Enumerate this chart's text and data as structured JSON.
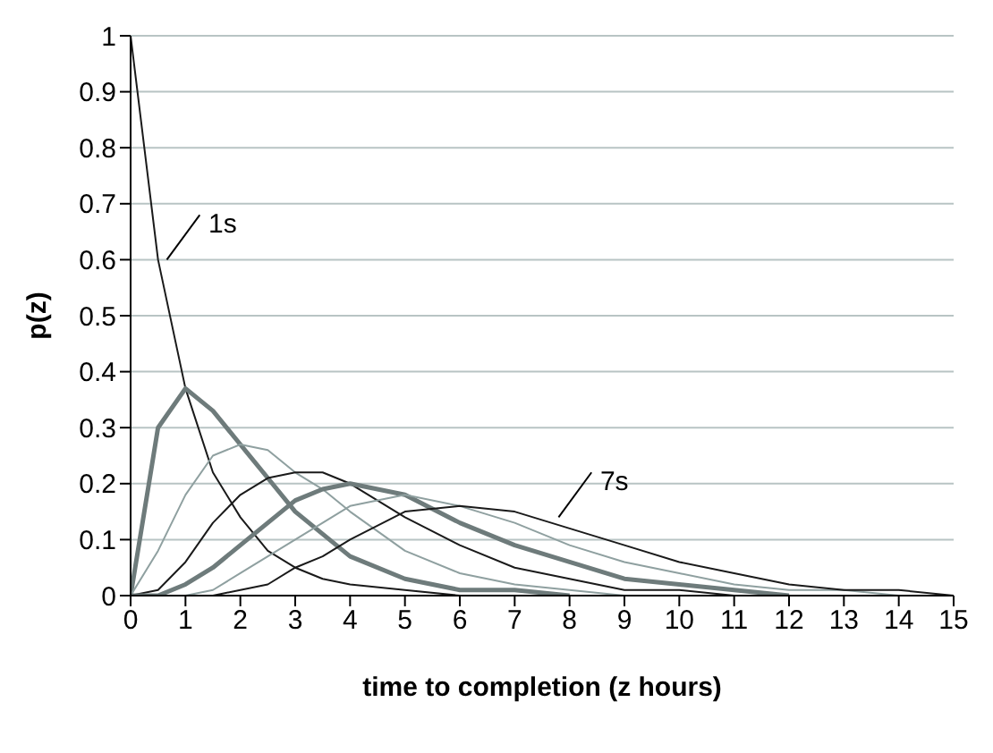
{
  "chart_data": {
    "type": "line",
    "xlabel": "time  to completion  (z hours)",
    "ylabel": "p(z)",
    "x": [
      0,
      0.5,
      1,
      1.5,
      2,
      2.5,
      3,
      3.5,
      4,
      5,
      6,
      7,
      8,
      9,
      10,
      11,
      12,
      13,
      14,
      15
    ],
    "series": [
      {
        "color": "#1a1a1a",
        "values": [
          1,
          0.6,
          0.37,
          0.22,
          0.14,
          0.08,
          0.05,
          0.03,
          0.02,
          0.01,
          0,
          null,
          null,
          null,
          null,
          null,
          null,
          null,
          null,
          null
        ]
      },
      {
        "color": "#6e7b7b",
        "values": [
          0,
          0.3,
          0.37,
          0.33,
          0.27,
          0.21,
          0.15,
          0.11,
          0.07,
          0.03,
          0.01,
          0.01,
          0,
          null,
          null,
          null,
          null,
          null,
          null,
          null
        ]
      },
      {
        "color": "#8fa0a0",
        "values": [
          0,
          0.08,
          0.18,
          0.25,
          0.27,
          0.26,
          0.22,
          0.19,
          0.15,
          0.08,
          0.04,
          0.02,
          0.01,
          0,
          null,
          null,
          null,
          null,
          null,
          null
        ]
      },
      {
        "color": "#1a1a1a",
        "values": [
          0,
          0.01,
          0.06,
          0.13,
          0.18,
          0.21,
          0.22,
          0.22,
          0.2,
          0.14,
          0.09,
          0.05,
          0.03,
          0.01,
          0.01,
          0,
          null,
          null,
          null,
          null
        ]
      },
      {
        "color": "#6e7b7b",
        "values": [
          0,
          0,
          0.02,
          0.05,
          0.09,
          0.13,
          0.17,
          0.19,
          0.2,
          0.18,
          0.13,
          0.09,
          0.06,
          0.03,
          0.02,
          0.01,
          0,
          null,
          null,
          null
        ]
      },
      {
        "color": "#8fa0a0",
        "values": [
          0,
          0,
          0,
          0.01,
          0.04,
          0.07,
          0.1,
          0.13,
          0.16,
          0.18,
          0.16,
          0.13,
          0.09,
          0.06,
          0.04,
          0.02,
          0.01,
          0.01,
          0,
          null
        ]
      },
      {
        "color": "#1a1a1a",
        "values": [
          0,
          0,
          0,
          0,
          0.01,
          0.02,
          0.05,
          0.07,
          0.1,
          0.15,
          0.16,
          0.15,
          0.12,
          0.09,
          0.06,
          0.04,
          0.02,
          0.01,
          0.01,
          0
        ]
      }
    ],
    "xlim": [
      0,
      15
    ],
    "xticks": [
      0,
      1,
      2,
      3,
      4,
      5,
      6,
      7,
      8,
      9,
      10,
      11,
      12,
      13,
      14,
      15
    ],
    "ylim": [
      0,
      1
    ],
    "yticks": [
      0,
      0.1,
      0.2,
      0.3,
      0.4,
      0.5,
      0.6,
      0.7,
      0.8,
      0.9,
      1
    ],
    "grid": "y",
    "legend": false,
    "marker": "none",
    "line_style": "solid",
    "annotations": [
      {
        "text": "1s",
        "x": 0.66,
        "y": 0.6
      },
      {
        "text": "7s",
        "x": 7.8,
        "y": 0.14
      }
    ]
  }
}
